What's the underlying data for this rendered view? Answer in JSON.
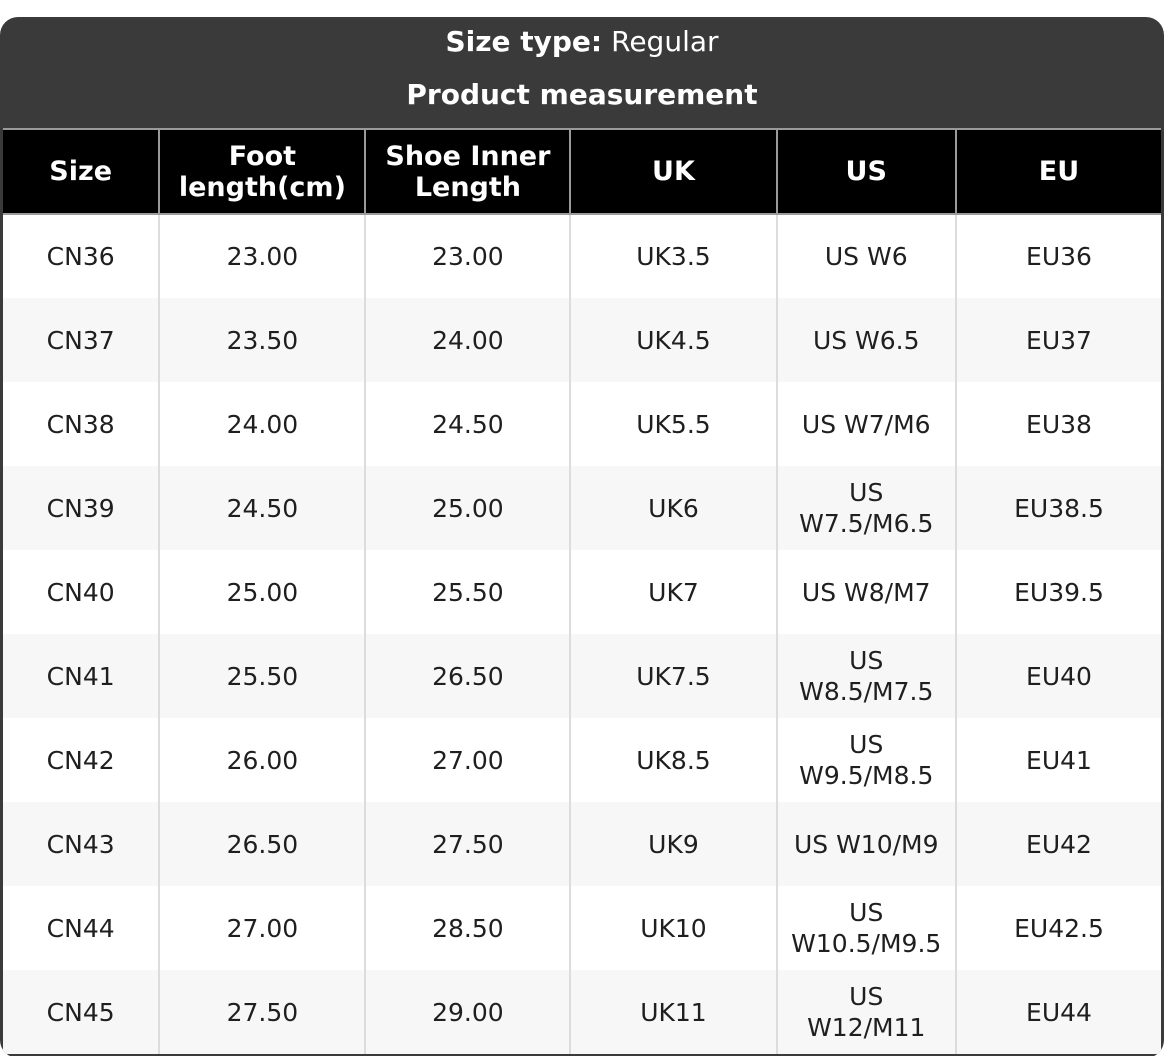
{
  "panel": {
    "size_type_label": "Size type:",
    "size_type_value": "Regular",
    "title": "Product measurement"
  },
  "table": {
    "columns": [
      {
        "key": "size",
        "label": "Size"
      },
      {
        "key": "foot_length_cm",
        "label": "Foot\nlength(cm)"
      },
      {
        "key": "shoe_inner_length",
        "label": "Shoe Inner\nLength"
      },
      {
        "key": "uk",
        "label": "UK"
      },
      {
        "key": "us",
        "label": "US"
      },
      {
        "key": "eu",
        "label": "EU"
      }
    ],
    "rows": [
      [
        "CN36",
        "23.00",
        "23.00",
        "UK3.5",
        "US W6",
        "EU36"
      ],
      [
        "CN37",
        "23.50",
        "24.00",
        "UK4.5",
        "US W6.5",
        "EU37"
      ],
      [
        "CN38",
        "24.00",
        "24.50",
        "UK5.5",
        "US W7/M6",
        "EU38"
      ],
      [
        "CN39",
        "24.50",
        "25.00",
        "UK6",
        "US\nW7.5/M6.5",
        "EU38.5"
      ],
      [
        "CN40",
        "25.00",
        "25.50",
        "UK7",
        "US W8/M7",
        "EU39.5"
      ],
      [
        "CN41",
        "25.50",
        "26.50",
        "UK7.5",
        "US\nW8.5/M7.5",
        "EU40"
      ],
      [
        "CN42",
        "26.00",
        "27.00",
        "UK8.5",
        "US\nW9.5/M8.5",
        "EU41"
      ],
      [
        "CN43",
        "26.50",
        "27.50",
        "UK9",
        "US W10/M9",
        "EU42"
      ],
      [
        "CN44",
        "27.00",
        "28.50",
        "UK10",
        "US\nW10.5/M9.5",
        "EU42.5"
      ],
      [
        "CN45",
        "27.50",
        "29.00",
        "UK11",
        "US\nW12/M11",
        "EU44"
      ]
    ]
  },
  "colors": {
    "panel_bg": "#3a3a3a",
    "header_bg": "#000000",
    "header_text": "#ffffff",
    "row_bg": "#ffffff",
    "row_alt_bg": "#f7f7f7",
    "body_text": "#1f1f1f",
    "column_border": "#dcdcdc",
    "header_border": "#9a9a9a"
  }
}
